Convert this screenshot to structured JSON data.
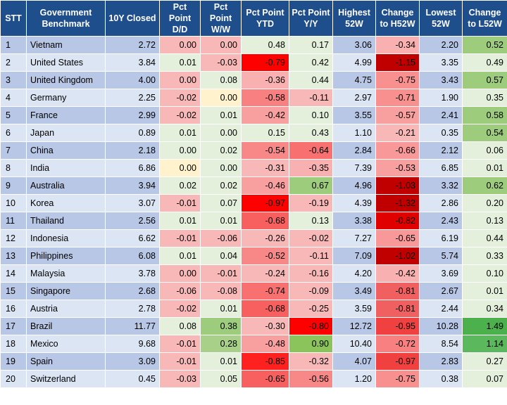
{
  "chart_data": {
    "type": "table",
    "columns": [
      "STT",
      "Government Benchmark",
      "10Y Closed",
      "Pct Point D/D",
      "Pct Point W/W",
      "Pct Point YTD",
      "Pct Point Y/Y",
      "Highest 52W",
      "Change to H52W",
      "Lowest 52W",
      "Change to L52W"
    ],
    "rows": [
      [
        "1",
        "Vietnam",
        "2.72",
        "0.00",
        "0.00",
        "0.48",
        "0.17",
        "3.06",
        "-0.34",
        "2.20",
        "0.52"
      ],
      [
        "2",
        "United States",
        "3.84",
        "0.01",
        "-0.03",
        "-0.79",
        "0.42",
        "4.99",
        "-1.15",
        "3.35",
        "0.49"
      ],
      [
        "3",
        "United Kingdom",
        "4.00",
        "0.00",
        "0.08",
        "-0.36",
        "0.44",
        "4.75",
        "-0.75",
        "3.43",
        "0.57"
      ],
      [
        "4",
        "Germany",
        "2.25",
        "-0.02",
        "0.00",
        "-0.58",
        "-0.11",
        "2.97",
        "-0.71",
        "1.90",
        "0.35"
      ],
      [
        "5",
        "France",
        "2.99",
        "-0.02",
        "0.01",
        "-0.42",
        "0.10",
        "3.55",
        "-0.57",
        "2.41",
        "0.58"
      ],
      [
        "6",
        "Japan",
        "0.89",
        "0.01",
        "0.00",
        "0.15",
        "0.43",
        "1.10",
        "-0.21",
        "0.35",
        "0.54"
      ],
      [
        "7",
        "China",
        "2.18",
        "0.00",
        "0.02",
        "-0.54",
        "-0.64",
        "2.84",
        "-0.66",
        "2.12",
        "0.06"
      ],
      [
        "8",
        "India",
        "6.86",
        "0.00",
        "0.00",
        "-0.31",
        "-0.35",
        "7.39",
        "-0.53",
        "6.85",
        "0.01"
      ],
      [
        "9",
        "Australia",
        "3.94",
        "0.02",
        "0.02",
        "-0.46",
        "0.67",
        "4.96",
        "-1.03",
        "3.32",
        "0.62"
      ],
      [
        "10",
        "Korea",
        "3.07",
        "-0.01",
        "0.07",
        "-0.97",
        "-0.19",
        "4.39",
        "-1.32",
        "2.86",
        "0.20"
      ],
      [
        "11",
        "Thailand",
        "2.56",
        "0.01",
        "0.01",
        "-0.68",
        "0.13",
        "3.38",
        "-0.82",
        "2.43",
        "0.13"
      ],
      [
        "12",
        "Indonesia",
        "6.62",
        "-0.01",
        "-0.06",
        "-0.26",
        "-0.02",
        "7.27",
        "-0.65",
        "6.19",
        "0.44"
      ],
      [
        "13",
        "Philippines",
        "6.08",
        "0.01",
        "0.04",
        "-0.52",
        "-0.11",
        "7.09",
        "-1.02",
        "5.74",
        "0.33"
      ],
      [
        "14",
        "Malaysia",
        "3.78",
        "0.00",
        "-0.01",
        "-0.24",
        "-0.16",
        "4.20",
        "-0.42",
        "3.69",
        "0.10"
      ],
      [
        "15",
        "Singapore",
        "2.68",
        "-0.06",
        "-0.08",
        "-0.74",
        "-0.09",
        "3.49",
        "-0.81",
        "2.67",
        "0.01"
      ],
      [
        "16",
        "Austria",
        "2.78",
        "-0.02",
        "0.01",
        "-0.68",
        "-0.25",
        "3.59",
        "-0.81",
        "2.44",
        "0.34"
      ],
      [
        "17",
        "Brazil",
        "11.77",
        "0.08",
        "0.38",
        "-0.30",
        "-0.80",
        "12.72",
        "-0.95",
        "10.28",
        "1.49"
      ],
      [
        "18",
        "Mexico",
        "9.68",
        "-0.01",
        "0.28",
        "-0.48",
        "0.90",
        "10.40",
        "-0.72",
        "8.54",
        "1.14"
      ],
      [
        "19",
        "Spain",
        "3.09",
        "-0.01",
        "0.01",
        "-0.85",
        "-0.32",
        "4.07",
        "-0.97",
        "2.83",
        "0.27"
      ],
      [
        "20",
        "Switzerland",
        "0.45",
        "-0.03",
        "0.05",
        "-0.65",
        "-0.56",
        "1.20",
        "-0.75",
        "0.38",
        "0.07"
      ]
    ],
    "cell_colors": [
      [
        null,
        null,
        null,
        "#f8b8b8",
        "#f8b8b8",
        "#e4f0dc",
        "#e4f0dc",
        null,
        "#f8b0b0",
        null,
        "#9ccc7c"
      ],
      [
        null,
        null,
        null,
        "#e4f0dc",
        "#f8b8b8",
        "#ff0000",
        "#e4f0dc",
        null,
        "#c00000",
        null,
        "#e4f0dc"
      ],
      [
        null,
        null,
        null,
        "#f8b8b8",
        "#e4f0dc",
        "#f8b0b0",
        "#e4f0dc",
        null,
        "#f89090",
        null,
        "#9ccc7c"
      ],
      [
        null,
        null,
        null,
        "#f8b8b8",
        "#fff2cc",
        "#f88080",
        "#f8b8b8",
        null,
        "#f89090",
        null,
        "#e4f0dc"
      ],
      [
        null,
        null,
        null,
        "#f8b8b8",
        "#e4f0dc",
        "#f8a0a0",
        "#e4f0dc",
        null,
        "#f8a0a0",
        null,
        "#9ccc7c"
      ],
      [
        null,
        null,
        null,
        "#e4f0dc",
        "#e4f0dc",
        "#e4f0dc",
        "#e4f0dc",
        null,
        "#f8b8b8",
        null,
        "#9ccc7c"
      ],
      [
        null,
        null,
        null,
        "#e4f0dc",
        "#e4f0dc",
        "#f88888",
        "#f87070",
        null,
        "#f89898",
        null,
        "#e4f0dc"
      ],
      [
        null,
        null,
        null,
        "#fff2cc",
        "#e4f0dc",
        "#f8b8b8",
        "#f8b0b0",
        null,
        "#f8a0a0",
        null,
        "#e4f0dc"
      ],
      [
        null,
        null,
        null,
        "#e4f0dc",
        "#e4f0dc",
        "#f8a0a0",
        "#9ccc7c",
        null,
        "#c00000",
        null,
        "#9ccc7c"
      ],
      [
        null,
        null,
        null,
        "#f8b8b8",
        "#e4f0dc",
        "#ff0000",
        "#f8b8b8",
        null,
        "#c00000",
        null,
        "#e4f0dc"
      ],
      [
        null,
        null,
        null,
        "#e4f0dc",
        "#e4f0dc",
        "#f86060",
        "#e4f0dc",
        null,
        "#e00000",
        null,
        "#e4f0dc"
      ],
      [
        null,
        null,
        null,
        "#f8b8b8",
        "#f8b8b8",
        "#f8b8b8",
        "#f8b8b8",
        null,
        "#f89898",
        null,
        "#e4f0dc"
      ],
      [
        null,
        null,
        null,
        "#e4f0dc",
        "#e4f0dc",
        "#f88888",
        "#f8b8b8",
        null,
        "#c00000",
        null,
        "#e4f0dc"
      ],
      [
        null,
        null,
        null,
        "#f8b8b8",
        "#f8b8b8",
        "#f8b8b8",
        "#f8b8b8",
        null,
        "#f8b0b0",
        null,
        "#e4f0dc"
      ],
      [
        null,
        null,
        null,
        "#f8b8b8",
        "#f8b8b8",
        "#f87070",
        "#f8b8b8",
        null,
        "#f06060",
        null,
        "#e4f0dc"
      ],
      [
        null,
        null,
        null,
        "#f8b8b8",
        "#e4f0dc",
        "#f86060",
        "#f8b8b8",
        null,
        "#f06060",
        null,
        "#e4f0dc"
      ],
      [
        null,
        null,
        null,
        "#e4f0dc",
        "#9ccc7c",
        "#f8b8b8",
        "#ff0000",
        null,
        "#f04040",
        null,
        "#4cb04c"
      ],
      [
        null,
        null,
        null,
        "#f8b8b8",
        "#a8d088",
        "#f8a0a0",
        "#8cc45c",
        null,
        "#f88080",
        null,
        "#5cb85c"
      ],
      [
        null,
        null,
        null,
        "#f8b8b8",
        "#e4f0dc",
        "#ff2020",
        "#f8b8b8",
        null,
        "#f04040",
        null,
        "#e4f0dc"
      ],
      [
        null,
        null,
        null,
        "#f8b8b8",
        "#e4f0dc",
        "#f86060",
        "#f88888",
        null,
        "#f89090",
        null,
        "#e4f0dc"
      ]
    ]
  }
}
